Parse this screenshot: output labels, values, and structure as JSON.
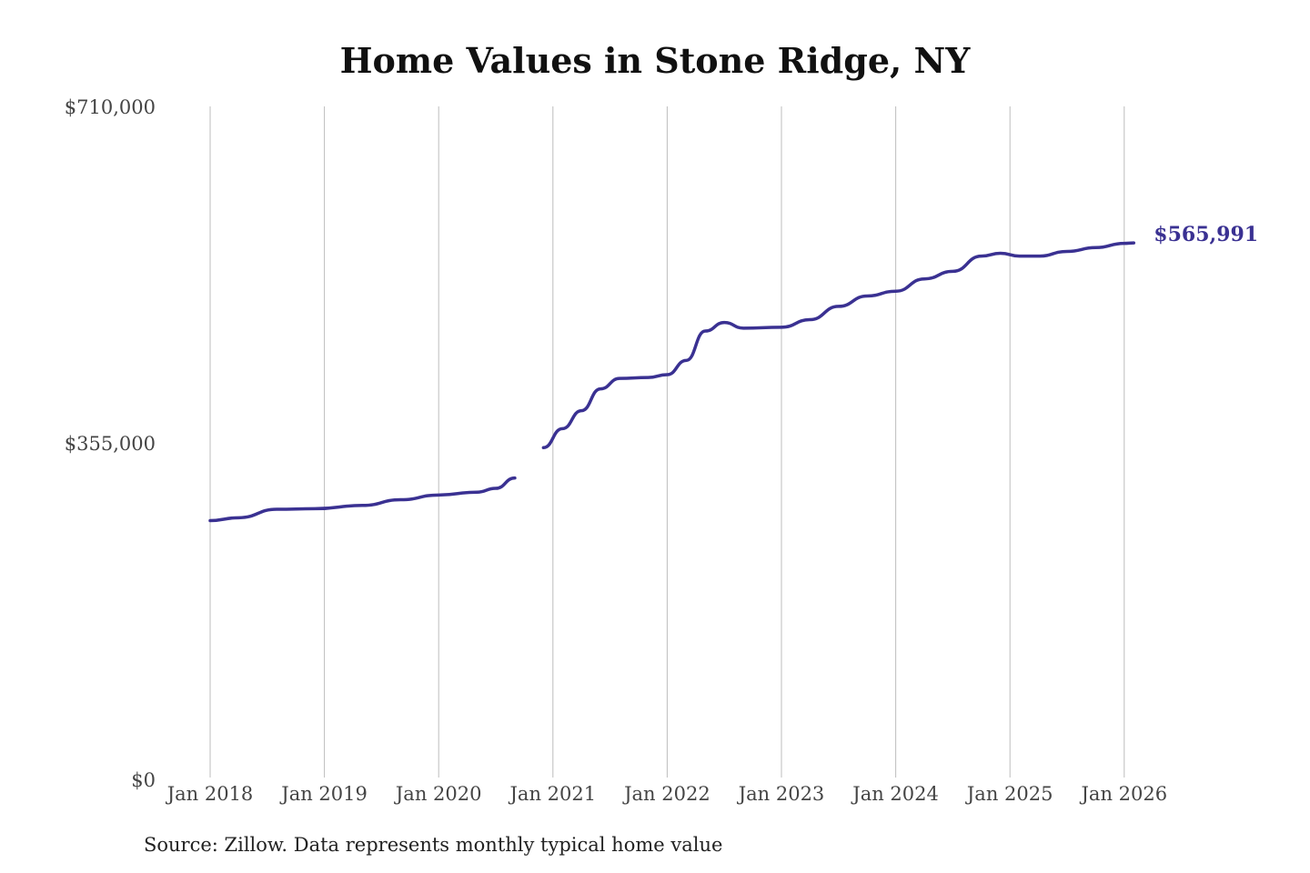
{
  "chart_data": {
    "type": "line",
    "title": "Home Values in Stone Ridge, NY",
    "xlabel": "",
    "ylabel": "",
    "ylim": [
      0,
      710000
    ],
    "y_ticks": [
      0,
      355000,
      710000
    ],
    "y_tick_labels": [
      "$0",
      "$355,000",
      "$710,000"
    ],
    "x_ticks": [
      "2018-01",
      "2019-01",
      "2020-01",
      "2021-01",
      "2022-01",
      "2023-01",
      "2024-01",
      "2025-01",
      "2026-01"
    ],
    "x_tick_labels": [
      "Jan 2018",
      "Jan 2019",
      "Jan 2020",
      "Jan 2021",
      "Jan 2022",
      "Jan 2023",
      "Jan 2024",
      "Jan 2025",
      "Jan 2026"
    ],
    "grid": "vertical",
    "series": [
      {
        "name": "Typical home value",
        "color": "#3a3192",
        "points": [
          [
            "2018-01",
            273000
          ],
          [
            "2018-04",
            276000
          ],
          [
            "2018-08",
            285000
          ],
          [
            "2018-12",
            285500
          ],
          [
            "2019-05",
            289000
          ],
          [
            "2019-09",
            295000
          ],
          [
            "2020-01",
            300000
          ],
          [
            "2020-05",
            303000
          ],
          [
            "2020-07",
            307000
          ],
          [
            "2020-09",
            318000
          ],
          [
            "2020-10",
            null
          ],
          [
            "2020-11",
            null
          ],
          [
            "2020-12",
            350000
          ],
          [
            "2021-02",
            370000
          ],
          [
            "2021-04",
            389000
          ],
          [
            "2021-06",
            412000
          ],
          [
            "2021-08",
            423000
          ],
          [
            "2021-11",
            424000
          ],
          [
            "2022-01",
            427000
          ],
          [
            "2022-03",
            442000
          ],
          [
            "2022-05",
            473000
          ],
          [
            "2022-07",
            482000
          ],
          [
            "2022-09",
            476000
          ],
          [
            "2023-01",
            477000
          ],
          [
            "2023-04",
            485000
          ],
          [
            "2023-07",
            499000
          ],
          [
            "2023-10",
            510000
          ],
          [
            "2024-01",
            515000
          ],
          [
            "2024-04",
            528000
          ],
          [
            "2024-07",
            536000
          ],
          [
            "2024-10",
            552000
          ],
          [
            "2024-12",
            555000
          ],
          [
            "2025-02",
            552000
          ],
          [
            "2025-04",
            552000
          ],
          [
            "2025-07",
            557000
          ],
          [
            "2025-10",
            561000
          ],
          [
            "2026-01",
            565500
          ],
          [
            "2026-02",
            565991
          ]
        ]
      }
    ],
    "end_label": "$565,991",
    "annotations": [
      "$565,991"
    ]
  },
  "source": "Source: Zillow. Data represents monthly typical home value"
}
